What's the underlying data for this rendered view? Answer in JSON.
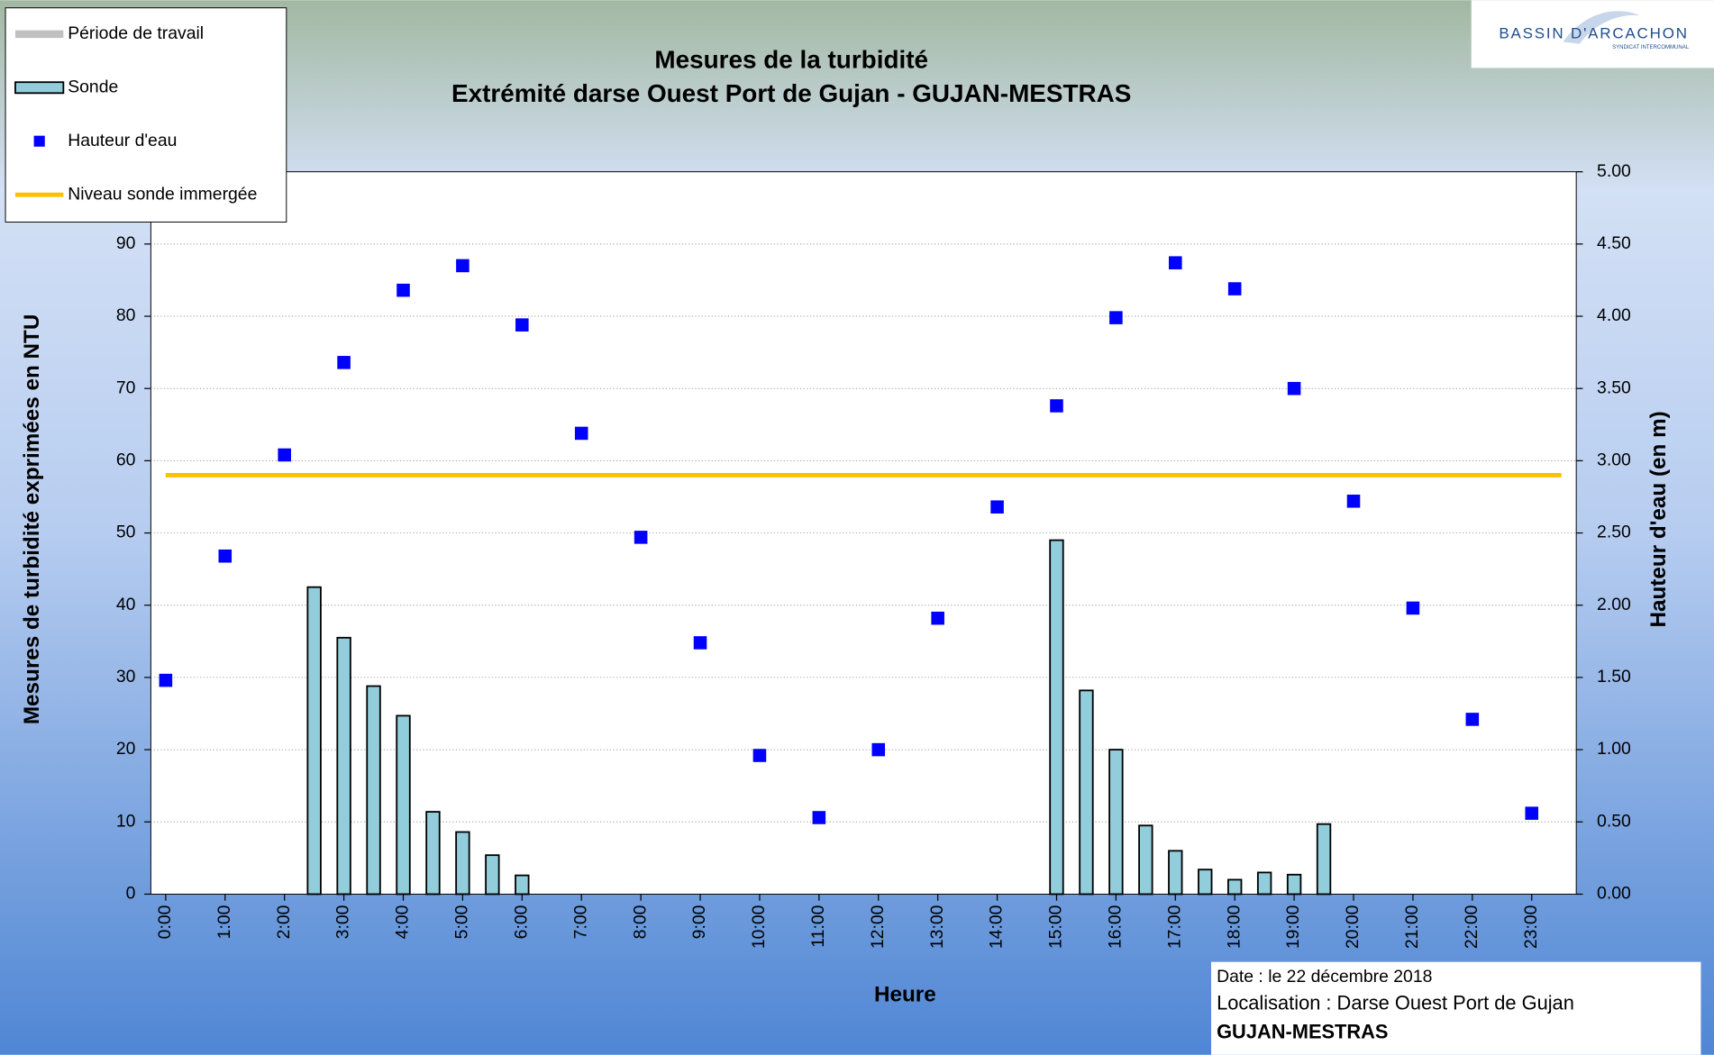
{
  "chart_data": {
    "type": "bar",
    "title": "Mesures de la turbidité",
    "subtitle": "Extrémité darse Ouest Port de Gujan - GUJAN-MESTRAS",
    "x_label": "Heure",
    "y_label": "Mesures de turbidité exprimées en NTU",
    "y2_label": "Hauteur d'eau (en m)",
    "xlim": [
      -0.25,
      23.75
    ],
    "xticks": [
      {
        "value": 0,
        "label": "0:00"
      },
      {
        "value": 1,
        "label": "1:00"
      },
      {
        "value": 2,
        "label": "2:00"
      },
      {
        "value": 3,
        "label": "3:00"
      },
      {
        "value": 4,
        "label": "4:00"
      },
      {
        "value": 5,
        "label": "5:00"
      },
      {
        "value": 6,
        "label": "6:00"
      },
      {
        "value": 7,
        "label": "7:00"
      },
      {
        "value": 8,
        "label": "8:00"
      },
      {
        "value": 9,
        "label": "9:00"
      },
      {
        "value": 10,
        "label": "10:00"
      },
      {
        "value": 11,
        "label": "11:00"
      },
      {
        "value": 12,
        "label": "12:00"
      },
      {
        "value": 13,
        "label": "13:00"
      },
      {
        "value": 14,
        "label": "14:00"
      },
      {
        "value": 15,
        "label": "15:00"
      },
      {
        "value": 16,
        "label": "16:00"
      },
      {
        "value": 17,
        "label": "17:00"
      },
      {
        "value": 18,
        "label": "18:00"
      },
      {
        "value": 19,
        "label": "19:00"
      },
      {
        "value": 20,
        "label": "20:00"
      },
      {
        "value": 21,
        "label": "21:00"
      },
      {
        "value": 22,
        "label": "22:00"
      },
      {
        "value": 23,
        "label": "23:00"
      }
    ],
    "ylim": [
      0,
      100
    ],
    "yticks": [
      0,
      10,
      20,
      30,
      40,
      50,
      60,
      70,
      80,
      90,
      100
    ],
    "y2lim": [
      0,
      5
    ],
    "y2ticks": [
      {
        "value": 0,
        "label": "0.00"
      },
      {
        "value": 0.5,
        "label": "0.50"
      },
      {
        "value": 1,
        "label": "1.00"
      },
      {
        "value": 1.5,
        "label": "1.50"
      },
      {
        "value": 2,
        "label": "2.00"
      },
      {
        "value": 2.5,
        "label": "2.50"
      },
      {
        "value": 3,
        "label": "3.00"
      },
      {
        "value": 3.5,
        "label": "3.50"
      },
      {
        "value": 4,
        "label": "4.00"
      },
      {
        "value": 4.5,
        "label": "4.50"
      },
      {
        "value": 5,
        "label": "5.00"
      }
    ],
    "grid": true,
    "legend": "top-left",
    "series": [
      {
        "name": "Période de travail",
        "type": "line",
        "color": "#c0c0c0",
        "x": [],
        "values": []
      },
      {
        "name": "Sonde",
        "type": "bar",
        "color": "#92cddc",
        "x": [
          2,
          2.5,
          3,
          3.5,
          4,
          4.5,
          5,
          5.5,
          6,
          14.5,
          15,
          15.5,
          16,
          16.5,
          17,
          17.5,
          18,
          18.5,
          19,
          19.5
        ],
        "values": [
          0,
          42.5,
          35.5,
          28.8,
          24.7,
          11.4,
          8.6,
          5.4,
          2.6,
          0,
          49,
          28.2,
          20,
          9.5,
          6,
          3.4,
          2,
          3,
          2.7,
          9.7
        ]
      },
      {
        "name": "Hauteur d'eau",
        "type": "scatter",
        "color": "#0000ff",
        "axis": "y2",
        "x": [
          0,
          1,
          2,
          3,
          4,
          5,
          6,
          7,
          8,
          9,
          10,
          11,
          12,
          13,
          14,
          15,
          16,
          17,
          18,
          19,
          20,
          21,
          22,
          23
        ],
        "values": [
          1.48,
          2.34,
          3.04,
          3.68,
          4.18,
          4.35,
          3.94,
          3.19,
          2.47,
          1.74,
          0.96,
          0.53,
          1.0,
          1.91,
          2.68,
          3.38,
          3.99,
          4.37,
          4.19,
          3.5,
          2.72,
          1.98,
          1.21,
          0.56
        ]
      },
      {
        "name": "Niveau sonde immergée",
        "type": "line",
        "color": "#ffc000",
        "axis": "y2",
        "x": [
          0,
          23.5
        ],
        "values": [
          2.9,
          2.9
        ]
      }
    ]
  },
  "info": {
    "date": "Date : le 22 décembre 2018",
    "location": "Localisation : Darse Ouest Port de Gujan",
    "place": "GUJAN-MESTRAS"
  },
  "logo": {
    "name": "BASSIN D'ARCACHON",
    "tagline": "SYNDICAT INTERCOMMUNAL"
  }
}
